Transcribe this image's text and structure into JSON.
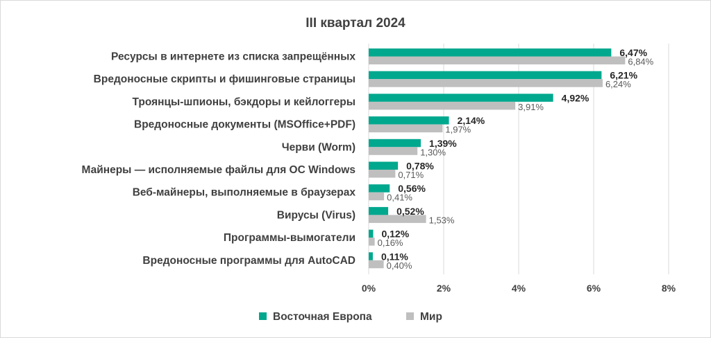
{
  "chart_data": {
    "type": "bar",
    "orientation": "horizontal",
    "title": "III квартал 2024",
    "categories": [
      "Ресурсы в интернете из списка запрещённых",
      "Вредоносные скрипты и фишинговые страницы",
      "Троянцы-шпионы, бэкдоры и кейлоггеры",
      "Вредоносные документы (MSOffice+PDF)",
      "Черви (Worm)",
      "Майнеры — исполняемые файлы для ОС Windows",
      "Веб-майнеры, выполняемые в браузерах",
      "Вирусы (Virus)",
      "Программы-вымогатели",
      "Вредоносные программы для AutoCAD"
    ],
    "series": [
      {
        "name": "Восточная Европа",
        "color": "#00a88e",
        "values": [
          6.47,
          6.21,
          4.92,
          2.14,
          1.39,
          0.78,
          0.56,
          0.52,
          0.12,
          0.11
        ],
        "labels": [
          "6,47%",
          "6,21%",
          "4,92%",
          "2,14%",
          "1,39%",
          "0,78%",
          "0,56%",
          "0,52%",
          "0,12%",
          "0,11%"
        ]
      },
      {
        "name": "Мир",
        "color": "#bfbfbf",
        "values": [
          6.84,
          6.24,
          3.91,
          1.97,
          1.3,
          0.71,
          0.41,
          1.53,
          0.16,
          0.4
        ],
        "labels": [
          "6,84%",
          "6,24%",
          "3,91%",
          "1,97%",
          "1,30%",
          "0,71%",
          "0,41%",
          "1,53%",
          "0,16%",
          "0,40%"
        ]
      }
    ],
    "xlim": [
      0,
      8
    ],
    "xticks": [
      0,
      2,
      4,
      6,
      8
    ],
    "xtick_labels": [
      "0%",
      "2%",
      "4%",
      "6%",
      "8%"
    ],
    "grid": true,
    "legend_position": "bottom"
  }
}
